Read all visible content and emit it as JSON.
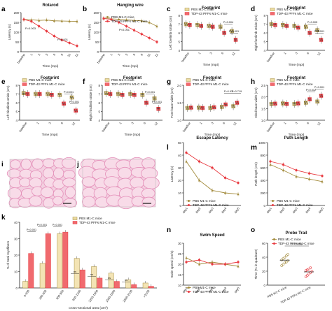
{
  "colors": {
    "pbs": "#a38b3c",
    "tdp": "#e8393f",
    "pbs_fill": "#ecdca2",
    "tdp_fill": "#f06a6e",
    "axis": "#222222",
    "micro_bg": "#f3cfe0",
    "micro_cell": "#e48fb9",
    "bar_pbs": "#f3e4b4"
  },
  "chart_data": [
    {
      "panel": "a",
      "type": "line",
      "title": "Rotarod",
      "xlabel": "Time (mpi)",
      "ylabel": "Latency (s)",
      "ylim": [
        0,
        200
      ],
      "yticks": [
        "0",
        "50",
        "100",
        "150",
        "200"
      ],
      "categories": [
        "baseline",
        "1",
        "3",
        "5",
        "6",
        "8",
        "10",
        "12"
      ],
      "series": [
        {
          "name": "PBS M1-C mice",
          "values": [
            165,
            163,
            160,
            162,
            158,
            157,
            156,
            155
          ]
        },
        {
          "name": "TDP-43 PFFs M1-C mice",
          "values": [
            165,
            155,
            130,
            105,
            80,
            60,
            45,
            30
          ]
        }
      ],
      "annotations": [
        "P=0.003",
        "P<0.001"
      ]
    },
    {
      "panel": "b",
      "type": "line",
      "title": "Hanging wire",
      "xlabel": "Time (mpi)",
      "ylabel": "Latency (s)",
      "ylim": [
        0,
        200
      ],
      "yticks": [
        "0",
        "50",
        "100",
        "150",
        "200"
      ],
      "categories": [
        "baseline",
        "1",
        "3",
        "5",
        "6",
        "8",
        "10",
        "12"
      ],
      "series": [
        {
          "name": "PBS M1-C mice",
          "values": [
            170,
            168,
            166,
            163,
            160,
            158,
            150,
            130
          ]
        },
        {
          "name": "TDP-43 PFFs M1-C mice",
          "values": [
            170,
            165,
            150,
            130,
            110,
            90,
            70,
            50
          ]
        }
      ],
      "annotations": [
        "P<0.001"
      ]
    },
    {
      "panel": "c",
      "type": "bar",
      "title": "Footprint",
      "ylabel": "Left forelimb stride (cm)",
      "xlabel": "Time (mpi)",
      "ylim": [
        4,
        8
      ],
      "yticks": [
        "4",
        "5",
        "6",
        "7",
        "8"
      ],
      "categories": [
        "baseline",
        "1",
        "3",
        "6",
        "12"
      ],
      "series": [
        {
          "name": "PBS M1-C mice",
          "values": [
            7.0,
            6.9,
            6.8,
            6.7,
            6.2
          ]
        },
        {
          "name": "TDP-43 PFFs M1-C mice",
          "values": [
            6.9,
            6.8,
            6.7,
            6.0,
            5.2
          ]
        }
      ],
      "annotations": [
        "P=0.004",
        "P<0.001"
      ]
    },
    {
      "panel": "d",
      "type": "bar",
      "title": "Footprint",
      "ylabel": "Right forelimb stride (cm)",
      "xlabel": "Time (mpi)",
      "ylim": [
        4,
        8
      ],
      "yticks": [
        "4",
        "5",
        "6",
        "7",
        "8"
      ],
      "categories": [
        "baseline",
        "1",
        "3",
        "6",
        "12"
      ],
      "series": [
        {
          "name": "PBS M1-C mice",
          "values": [
            7.0,
            6.9,
            6.8,
            6.7,
            6.3
          ]
        },
        {
          "name": "TDP-43 PFFs M1-C mice",
          "values": [
            6.9,
            6.8,
            6.6,
            6.0,
            5.2
          ]
        }
      ],
      "annotations": [
        "P=0.005",
        "P<0.001"
      ]
    },
    {
      "panel": "e",
      "type": "bar",
      "title": "Footprint",
      "ylabel": "Left hindlimb stride (cm)",
      "xlabel": "Time (mpi)",
      "ylim": [
        4,
        8
      ],
      "yticks": [
        "4",
        "5",
        "6",
        "7",
        "8"
      ],
      "categories": [
        "baseline",
        "1",
        "3",
        "6",
        "12"
      ],
      "series": [
        {
          "name": "PBS M1-C mice",
          "values": [
            7.1,
            7.0,
            7.0,
            6.9,
            6.6
          ]
        },
        {
          "name": "TDP-43 PFFs M1-C mice",
          "values": [
            7.0,
            7.0,
            6.9,
            5.9,
            5.1
          ]
        }
      ],
      "annotations": [
        "P<0.001",
        "P<0.001"
      ]
    },
    {
      "panel": "f",
      "type": "bar",
      "title": "Footprint",
      "ylabel": "Right hindlimb stride (cm)",
      "xlabel": "Time (mpi)",
      "ylim": [
        4,
        8
      ],
      "yticks": [
        "4",
        "5",
        "6",
        "7",
        "8"
      ],
      "categories": [
        "baseline",
        "1",
        "3",
        "6",
        "12"
      ],
      "series": [
        {
          "name": "PBS M1-C mice",
          "values": [
            7.1,
            7.0,
            7.0,
            6.9,
            6.5
          ]
        },
        {
          "name": "TDP-43 PFFs M1-C mice",
          "values": [
            7.0,
            6.9,
            6.9,
            6.0,
            5.3
          ]
        }
      ],
      "annotations": [
        "P=0.001",
        "P<0.001"
      ]
    },
    {
      "panel": "g",
      "type": "bar",
      "title": "Footprint",
      "ylabel": "Fore-base width (cm)",
      "xlabel": "Time (mpi)",
      "ylim": [
        1.0,
        2.0
      ],
      "yticks": [
        "1.0",
        "1.5",
        "2.0"
      ],
      "categories": [
        "baseline",
        "1",
        "3",
        "6",
        "12"
      ],
      "series": [
        {
          "name": "PBS M1-C mice",
          "values": [
            1.35,
            1.36,
            1.35,
            1.38,
            1.4
          ]
        },
        {
          "name": "TDP-43 PFFs M1-C mice",
          "values": [
            1.36,
            1.35,
            1.37,
            1.45,
            1.5
          ]
        }
      ],
      "annotations": [
        "P=0.93",
        "P=0.719"
      ]
    },
    {
      "panel": "h",
      "type": "bar",
      "title": "Footprint",
      "ylabel": "Hind-base width (cm)",
      "xlabel": "Time (mpi)",
      "ylim": [
        1.0,
        2.5
      ],
      "yticks": [
        "1.0",
        "1.5",
        "2.0",
        "2.5"
      ],
      "categories": [
        "baseline",
        "1",
        "3",
        "6",
        "12"
      ],
      "series": [
        {
          "name": "PBS M1-C mice",
          "values": [
            1.7,
            1.72,
            1.7,
            1.75,
            1.8
          ]
        },
        {
          "name": "TDP-43 PFFs M1-C mice",
          "values": [
            1.71,
            1.7,
            1.72,
            1.9,
            2.05
          ]
        }
      ],
      "annotations": [
        "P=0.012",
        "P=0.001"
      ]
    },
    {
      "panel": "k",
      "type": "bar",
      "xlabel": "cross-sectional area (um²)",
      "ylabel": "% of total myofibers",
      "ylim": [
        0,
        40
      ],
      "yticks": [
        "0",
        "10",
        "20",
        "30",
        "40"
      ],
      "categories": [
        "0-300",
        "300-600",
        "600-900",
        "900-1200",
        "1200-1500",
        "1500-1800",
        "1800-2100",
        ">2100"
      ],
      "series": [
        {
          "name": "PBS M1-C mice",
          "values": [
            4,
            15,
            33,
            18,
            13,
            9,
            5,
            3
          ]
        },
        {
          "name": "TDP-43 PFFs M1-C mice",
          "values": [
            21,
            33,
            34,
            11,
            6,
            4,
            2,
            1
          ]
        }
      ],
      "annotations": [
        "P<0.001",
        "P<0.001",
        "P=0.001",
        "ns",
        "ns",
        "ns",
        "ns"
      ]
    },
    {
      "panel": "l",
      "type": "line",
      "title": "Escape Latency",
      "ylabel": "Latency (s)",
      "ylim": [
        0,
        50
      ],
      "yticks": [
        "0",
        "10",
        "20",
        "30",
        "40",
        "50"
      ],
      "categories": [
        "day1",
        "day2",
        "day3",
        "day4",
        "day5"
      ],
      "series": [
        {
          "name": "PBS M1-C mice",
          "values": [
            35,
            20,
            12,
            10,
            9
          ]
        },
        {
          "name": "TDP-43 PFFs M1-C mice",
          "values": [
            42,
            35,
            30,
            22,
            18
          ]
        }
      ]
    },
    {
      "panel": "m",
      "type": "line",
      "title": "Path Length",
      "ylabel": "Path length (cm)",
      "ylim": [
        0,
        1000
      ],
      "yticks": [
        "0",
        "200",
        "400",
        "600",
        "800",
        "1000"
      ],
      "categories": [
        "day1",
        "day2",
        "day3",
        "day4",
        "day5"
      ],
      "series": [
        {
          "name": "PBS M1-C mice",
          "values": [
            650,
            560,
            460,
            420,
            380
          ]
        },
        {
          "name": "TDP-43 PFFs M1-C mice",
          "values": [
            700,
            650,
            560,
            510,
            470
          ]
        }
      ]
    },
    {
      "panel": "n",
      "type": "line",
      "title": "Swim Speed",
      "ylabel": "Swim speed (cm/s)",
      "ylim": [
        10,
        30
      ],
      "yticks": [
        "10",
        "15",
        "20",
        "25",
        "30"
      ],
      "categories": [
        "day1",
        "day2",
        "day3",
        "day4",
        "day5"
      ],
      "series": [
        {
          "name": "PBS M1-C mice",
          "values": [
            23,
            20,
            21,
            20,
            19
          ]
        },
        {
          "name": "TDP-43 PFFs M1-C mice",
          "values": [
            21,
            22,
            20,
            20,
            21
          ]
        }
      ]
    },
    {
      "panel": "o",
      "type": "scatter",
      "title": "Probe Trail",
      "ylabel": "Time (% in quadrant)",
      "ylim": [
        0,
        60
      ],
      "yticks": [
        "0",
        "20",
        "40",
        "60"
      ],
      "categories": [
        "PBS M1-C mice",
        "TDP-43 PFFs M1-C mice"
      ],
      "series": [
        {
          "name": "PBS M1-C mice",
          "values": [
            28,
            30,
            32,
            33,
            35,
            36,
            38,
            40,
            42,
            44
          ]
        },
        {
          "name": "TDP-43 PFFs M1-C mice",
          "values": [
            12,
            14,
            16,
            18,
            20,
            21,
            22,
            23,
            25
          ]
        }
      ],
      "annotations": [
        "P<0.001"
      ]
    }
  ],
  "micrographs": [
    {
      "panel": "i"
    },
    {
      "panel": "j"
    }
  ]
}
